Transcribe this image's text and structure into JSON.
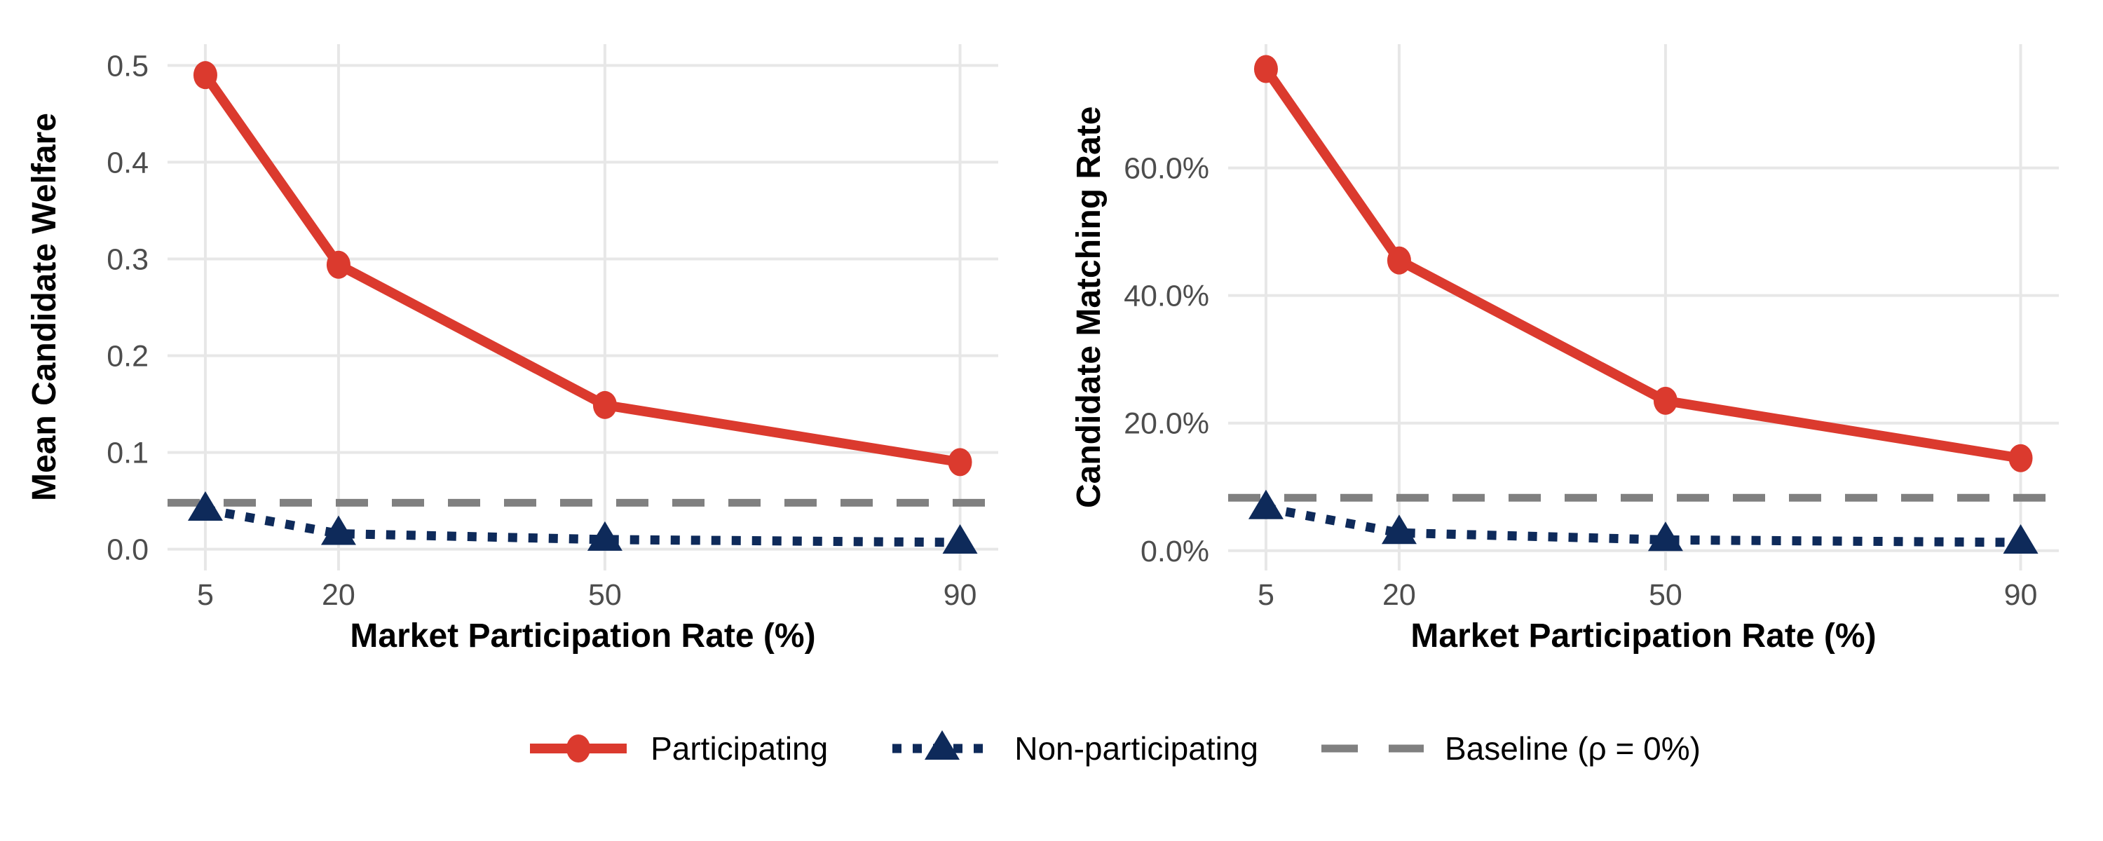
{
  "figure": {
    "background": "#FFFFFF",
    "legend": {
      "position": "bottom",
      "items": [
        {
          "label": "Participating",
          "swatch": "solid-line-circle-marker",
          "color": "#DB3A2E"
        },
        {
          "label": "Non-participating",
          "swatch": "dotted-line-triangle-marker",
          "color": "#0E2A5A"
        },
        {
          "label": "Baseline (ρ = 0%)",
          "swatch": "dashed-line",
          "color": "#808080"
        }
      ]
    }
  },
  "colors": {
    "participating": "#DB3A2E",
    "non_participating": "#0E2A5A",
    "baseline": "#808080",
    "grid": "#E7E7E7",
    "tick_label": "#4D4D4D",
    "axis_title": "#000000",
    "background": "#FFFFFF"
  },
  "chart_data": [
    {
      "type": "line",
      "panel": "left",
      "title": "",
      "xlabel": "Market Participation Rate (%)",
      "ylabel": "Mean Candidate Welfare",
      "x": [
        5,
        20,
        50,
        90
      ],
      "xtick_labels": [
        "5",
        "20",
        "50",
        "90"
      ],
      "series": [
        {
          "name": "Participating",
          "style": "solid",
          "marker": "circle",
          "color": "#DB3A2E",
          "values": [
            0.49,
            0.294,
            0.149,
            0.09
          ]
        },
        {
          "name": "Non-participating",
          "style": "dotted",
          "marker": "triangle",
          "color": "#0E2A5A",
          "values": [
            0.041,
            0.016,
            0.01,
            0.007
          ]
        }
      ],
      "baseline": {
        "name": "Baseline (ρ = 0%)",
        "value": 0.048,
        "style": "dashed",
        "color": "#808080"
      },
      "yticks": [
        0,
        0.1,
        0.2,
        0.3,
        0.4,
        0.5
      ],
      "ytick_labels": [
        "0.0",
        "0.1",
        "0.2",
        "0.3",
        "0.4",
        "0.5"
      ],
      "ylim": [
        -0.022,
        0.522
      ],
      "xlim": [
        0.74,
        94.3
      ],
      "grid": true,
      "legend_position": "bottom"
    },
    {
      "type": "line",
      "panel": "right",
      "title": "",
      "xlabel": "Market Participation Rate (%)",
      "ylabel": "Candidate Matching Rate",
      "x": [
        5,
        20,
        50,
        90
      ],
      "xtick_labels": [
        "5",
        "20",
        "50",
        "90"
      ],
      "series": [
        {
          "name": "Participating",
          "style": "solid",
          "marker": "circle",
          "color": "#DB3A2E",
          "values": [
            75.5,
            45.5,
            23.5,
            14.5
          ]
        },
        {
          "name": "Non-participating",
          "style": "dotted",
          "marker": "triangle",
          "color": "#0E2A5A",
          "values": [
            6.7,
            2.8,
            1.7,
            1.3
          ]
        }
      ],
      "baseline": {
        "name": "Baseline (ρ = 0%)",
        "value": 8.3,
        "style": "dashed",
        "color": "#808080"
      },
      "yticks": [
        0,
        20,
        40,
        60
      ],
      "ytick_labels": [
        "0.0%",
        "20.0%",
        "40.0%",
        "60.0%"
      ],
      "ylim": [
        -3.1,
        79.4
      ],
      "xlim": [
        0.74,
        94.3
      ],
      "grid": true,
      "legend_position": "bottom"
    }
  ]
}
